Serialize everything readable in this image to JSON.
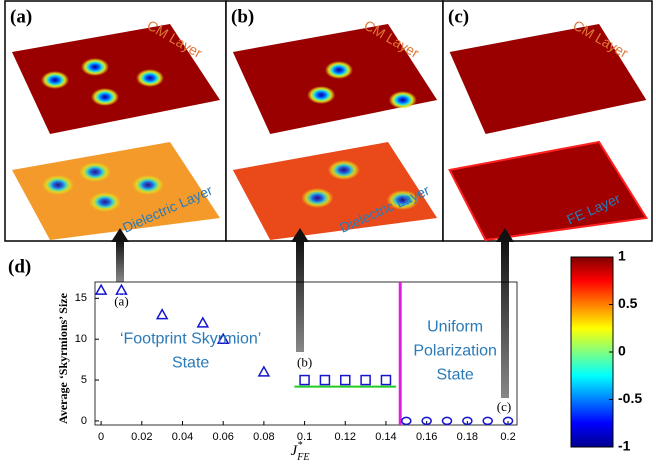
{
  "panels": [
    {
      "label": "(a)",
      "top_layer": "CM Layer",
      "bottom_layer": "Dielectric Layer"
    },
    {
      "label": "(b)",
      "top_layer": "CM Layer",
      "bottom_layer": "Dielectric Layer"
    },
    {
      "label": "(c)",
      "top_layer": "CM Layer",
      "bottom_layer": "FE Layer"
    }
  ],
  "chart_data": {
    "type": "scatter",
    "panel_label": "(d)",
    "y_label": "Average ‘Skyrmions’ Size",
    "x_label": {
      "text": "J",
      "sup": "*",
      "sub": "FE"
    },
    "xlim": [
      -0.003,
      0.2044
    ],
    "ylim": [
      -0.5,
      17
    ],
    "xticks": [
      0,
      0.02,
      0.04,
      0.06,
      0.08,
      0.1,
      0.12,
      0.14,
      0.16,
      0.18,
      0.2
    ],
    "yticks": [
      0,
      5,
      10,
      15
    ],
    "series": [
      {
        "marker": "triangle",
        "color": "#1515d0",
        "x": [
          0,
          0.01,
          0.03,
          0.05,
          0.06,
          0.08
        ],
        "values": [
          16,
          16,
          13,
          12,
          10,
          6
        ]
      },
      {
        "marker": "square",
        "color": "#1515d0",
        "x": [
          0.1,
          0.11,
          0.12,
          0.13,
          0.14
        ],
        "values": [
          5,
          5,
          5,
          5,
          5
        ]
      },
      {
        "marker": "circle",
        "color": "#1515d0",
        "x": [
          0.15,
          0.16,
          0.17,
          0.18,
          0.19,
          0.2
        ],
        "values": [
          0,
          0,
          0,
          0,
          0,
          0
        ]
      }
    ],
    "phase_boundary": {
      "x": 0.147,
      "color": "#e020e0"
    },
    "guide_line": {
      "y": 4.2,
      "x": [
        0.095,
        0.145
      ],
      "color": "#22cc22"
    },
    "annotations": [
      {
        "text": "(a)",
        "x": 0.01,
        "y": 14.5
      },
      {
        "text": "(b)",
        "x": 0.1,
        "y": 7
      },
      {
        "text": "(c)",
        "x": 0.198,
        "y": 1.6
      }
    ],
    "region_labels": [
      {
        "lines": [
          "‘Footprint Skyrmion’",
          "State"
        ],
        "x": 0.044,
        "y": 8.5
      },
      {
        "lines": [
          "Uniform",
          "Polarization",
          "State"
        ],
        "x": 0.174,
        "y": 8.5
      }
    ]
  },
  "colorbar": {
    "lim": [
      -1,
      1
    ],
    "ticks": [
      1,
      0.5,
      0,
      -0.5,
      -1
    ]
  }
}
